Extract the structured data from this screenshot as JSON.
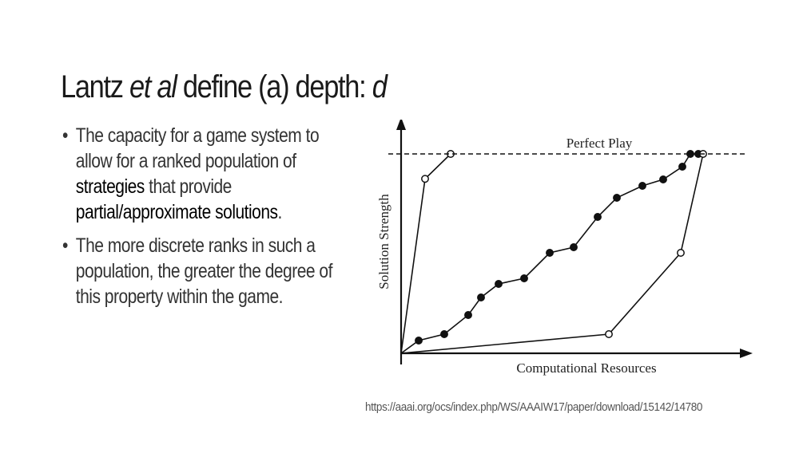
{
  "slide": {
    "title_prefix": "Lantz ",
    "title_italic": "et al",
    "title_middle": " define (a) depth: ",
    "title_var": "d",
    "bullet1_a": "The capacity for a game system to allow for a ranked population of ",
    "bullet1_b": "strategies",
    "bullet1_c": " that provide ",
    "bullet1_d": "partial/approximate solutions",
    "bullet1_e": ".",
    "bullet2": "The more discrete ranks in such a population, the greater the degree of this property within the game.",
    "source_url": "https://aaai.org/ocs/index.php/WS/AAAIW17/paper/download/15142/14780"
  },
  "chart_data": {
    "type": "line",
    "xlabel": "Computational Resources",
    "ylabel": "Solution Strength",
    "reference_label": "Perfect Play",
    "perfect_play": 100,
    "xlim": [
      0,
      100
    ],
    "ylim": [
      0,
      112
    ],
    "series": [
      {
        "marker": "open",
        "x": [
          0,
          7.5,
          15.5
        ],
        "y": [
          0,
          87.5,
          100
        ]
      },
      {
        "marker": "filled",
        "x": [
          0,
          5.5,
          13.5,
          21,
          25,
          30.5,
          38.5,
          46.5,
          54,
          61.5,
          67.5,
          75.5,
          82,
          88,
          90.5,
          93
        ],
        "y": [
          0,
          6.4,
          9.6,
          19.2,
          28,
          34.8,
          37.6,
          50.4,
          53.2,
          68.4,
          78,
          84,
          87.2,
          93.6,
          100,
          100
        ]
      },
      {
        "marker": "open",
        "x": [
          0,
          65,
          87.5,
          94.5
        ],
        "y": [
          0,
          9.6,
          50.4,
          100
        ]
      }
    ]
  }
}
